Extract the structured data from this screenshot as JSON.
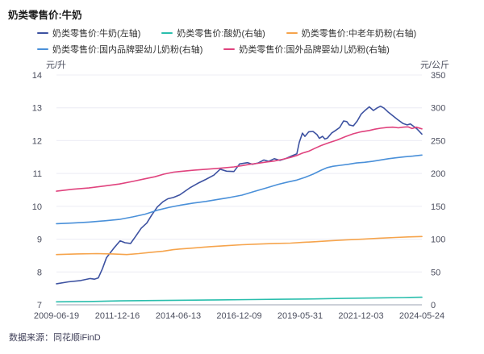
{
  "page": {
    "title": "奶类零售价:牛奶",
    "source": "数据来源：同花顺iFinD"
  },
  "chart_data": {
    "type": "line",
    "title": "奶类零售价:牛奶",
    "legend_position": "top",
    "grid": "horizontal-only",
    "grid_color": "#ececf4",
    "axis_line_color": "#9ba1b0",
    "x_axis": {
      "type": "time",
      "tick_labels": [
        "2009-06-19",
        "2011-12-16",
        "2014-06-13",
        "2016-12-09",
        "2019-05-31",
        "2021-12-03",
        "2024-05-24"
      ],
      "range_years": [
        2009.47,
        2024.4
      ]
    },
    "y_axis_left": {
      "unit": "元/升",
      "min": 7,
      "max": 14,
      "ticks": [
        7,
        8,
        9,
        10,
        11,
        12,
        13,
        14
      ]
    },
    "y_axis_right": {
      "unit": "元/公斤",
      "min": 0,
      "max": 350,
      "ticks": [
        0,
        50,
        100,
        150,
        200,
        250,
        300,
        350
      ]
    },
    "series": [
      {
        "name": "奶类零售价:牛奶(左轴)",
        "axis": "left",
        "color": "#3d52a1",
        "points": [
          [
            2009.47,
            7.64
          ],
          [
            2009.96,
            7.7
          ],
          [
            2010.46,
            7.74
          ],
          [
            2010.85,
            7.8
          ],
          [
            2011.02,
            7.78
          ],
          [
            2011.18,
            7.82
          ],
          [
            2011.35,
            8.1
          ],
          [
            2011.51,
            8.43
          ],
          [
            2011.84,
            8.75
          ],
          [
            2012.07,
            8.95
          ],
          [
            2012.27,
            8.89
          ],
          [
            2012.5,
            8.87
          ],
          [
            2012.7,
            9.08
          ],
          [
            2012.93,
            9.33
          ],
          [
            2013.16,
            9.49
          ],
          [
            2013.36,
            9.73
          ],
          [
            2013.59,
            9.98
          ],
          [
            2013.82,
            10.14
          ],
          [
            2014.02,
            10.23
          ],
          [
            2014.25,
            10.27
          ],
          [
            2014.51,
            10.35
          ],
          [
            2014.91,
            10.56
          ],
          [
            2015.24,
            10.7
          ],
          [
            2015.57,
            10.82
          ],
          [
            2015.9,
            10.95
          ],
          [
            2016.16,
            11.13
          ],
          [
            2016.42,
            11.07
          ],
          [
            2016.72,
            11.06
          ],
          [
            2016.95,
            11.29
          ],
          [
            2017.28,
            11.33
          ],
          [
            2017.48,
            11.28
          ],
          [
            2017.71,
            11.32
          ],
          [
            2017.94,
            11.41
          ],
          [
            2018.14,
            11.37
          ],
          [
            2018.37,
            11.45
          ],
          [
            2018.6,
            11.4
          ],
          [
            2018.86,
            11.46
          ],
          [
            2019.09,
            11.54
          ],
          [
            2019.29,
            11.6
          ],
          [
            2019.39,
            11.95
          ],
          [
            2019.52,
            12.23
          ],
          [
            2019.62,
            12.13
          ],
          [
            2019.78,
            12.27
          ],
          [
            2019.95,
            12.28
          ],
          [
            2020.11,
            12.19
          ],
          [
            2020.21,
            12.07
          ],
          [
            2020.34,
            12.13
          ],
          [
            2020.44,
            12.05
          ],
          [
            2020.54,
            12.08
          ],
          [
            2020.71,
            12.23
          ],
          [
            2020.87,
            12.31
          ],
          [
            2021.04,
            12.4
          ],
          [
            2021.2,
            12.6
          ],
          [
            2021.33,
            12.58
          ],
          [
            2021.43,
            12.48
          ],
          [
            2021.6,
            12.45
          ],
          [
            2021.76,
            12.6
          ],
          [
            2021.92,
            12.81
          ],
          [
            2022.09,
            12.93
          ],
          [
            2022.25,
            13.03
          ],
          [
            2022.42,
            12.92
          ],
          [
            2022.58,
            13.0
          ],
          [
            2022.71,
            13.05
          ],
          [
            2022.85,
            12.99
          ],
          [
            2023.01,
            12.88
          ],
          [
            2023.21,
            12.76
          ],
          [
            2023.41,
            12.64
          ],
          [
            2023.64,
            12.52
          ],
          [
            2023.8,
            12.48
          ],
          [
            2023.93,
            12.51
          ],
          [
            2024.07,
            12.43
          ],
          [
            2024.2,
            12.36
          ],
          [
            2024.4,
            12.2
          ]
        ]
      },
      {
        "name": "奶类零售价:酸奶(右轴)",
        "axis": "right",
        "color": "#2abead",
        "points": [
          [
            2009.47,
            4.5
          ],
          [
            2010.79,
            5
          ],
          [
            2012.11,
            6
          ],
          [
            2013.42,
            6.5
          ],
          [
            2014.74,
            7
          ],
          [
            2016.06,
            7.5
          ],
          [
            2017.38,
            8
          ],
          [
            2018.7,
            8.5
          ],
          [
            2020.01,
            9
          ],
          [
            2021.33,
            10
          ],
          [
            2022.65,
            10.5
          ],
          [
            2023.64,
            11
          ],
          [
            2024.4,
            11.5
          ]
        ]
      },
      {
        "name": "奶类零售价:中老年奶粉(右轴)",
        "axis": "right",
        "color": "#f6a44c",
        "points": [
          [
            2009.47,
            76.5
          ],
          [
            2010.29,
            77.5
          ],
          [
            2011.12,
            78
          ],
          [
            2011.78,
            77.5
          ],
          [
            2012.34,
            76.5
          ],
          [
            2012.83,
            78
          ],
          [
            2013.32,
            80
          ],
          [
            2013.82,
            81.5
          ],
          [
            2014.25,
            84
          ],
          [
            2014.51,
            85
          ],
          [
            2015.07,
            86.5
          ],
          [
            2015.73,
            88.5
          ],
          [
            2016.39,
            90
          ],
          [
            2017.05,
            91.5
          ],
          [
            2017.71,
            92.5
          ],
          [
            2018.37,
            93.5
          ],
          [
            2019.03,
            94
          ],
          [
            2019.52,
            95
          ],
          [
            2020.01,
            96
          ],
          [
            2020.67,
            97.5
          ],
          [
            2021.33,
            99
          ],
          [
            2021.99,
            100
          ],
          [
            2022.65,
            101.5
          ],
          [
            2023.31,
            102.5
          ],
          [
            2023.96,
            103.5
          ],
          [
            2024.4,
            104
          ]
        ]
      },
      {
        "name": "奶类零售价:国内品牌婴幼儿奶粉(右轴)",
        "axis": "right",
        "color": "#4a90d9",
        "points": [
          [
            2009.47,
            123.5
          ],
          [
            2010.13,
            124.5
          ],
          [
            2010.79,
            126
          ],
          [
            2011.45,
            128
          ],
          [
            2012.04,
            130
          ],
          [
            2012.6,
            134
          ],
          [
            2013.09,
            138
          ],
          [
            2013.59,
            144
          ],
          [
            2014.08,
            148.5
          ],
          [
            2014.51,
            151.5
          ],
          [
            2015.07,
            155
          ],
          [
            2015.57,
            157.5
          ],
          [
            2016.06,
            160.5
          ],
          [
            2016.55,
            163.5
          ],
          [
            2017.05,
            167
          ],
          [
            2017.54,
            172.5
          ],
          [
            2018.04,
            178
          ],
          [
            2018.53,
            183.5
          ],
          [
            2018.93,
            187
          ],
          [
            2019.29,
            190
          ],
          [
            2019.62,
            194
          ],
          [
            2019.95,
            199
          ],
          [
            2020.28,
            205
          ],
          [
            2020.54,
            209
          ],
          [
            2020.77,
            211
          ],
          [
            2021.07,
            212.5
          ],
          [
            2021.4,
            214
          ],
          [
            2021.73,
            216
          ],
          [
            2022.05,
            217
          ],
          [
            2022.38,
            218.5
          ],
          [
            2022.71,
            220.5
          ],
          [
            2023.04,
            222.5
          ],
          [
            2023.37,
            224
          ],
          [
            2023.7,
            225.5
          ],
          [
            2024.03,
            226.5
          ],
          [
            2024.4,
            228
          ]
        ]
      },
      {
        "name": "奶类零售价:国外品牌婴幼儿奶粉(右轴)",
        "axis": "right",
        "color": "#e0437e",
        "points": [
          [
            2009.47,
            173
          ],
          [
            2010.13,
            176
          ],
          [
            2010.79,
            178
          ],
          [
            2011.45,
            181
          ],
          [
            2012.04,
            184
          ],
          [
            2012.6,
            188
          ],
          [
            2013.09,
            192
          ],
          [
            2013.49,
            195
          ],
          [
            2013.85,
            199
          ],
          [
            2014.25,
            202
          ],
          [
            2014.51,
            203
          ],
          [
            2015.07,
            205
          ],
          [
            2015.57,
            206.5
          ],
          [
            2016.16,
            208
          ],
          [
            2016.72,
            210
          ],
          [
            2017.05,
            212
          ],
          [
            2017.38,
            214
          ],
          [
            2017.71,
            215.5
          ],
          [
            2018.04,
            217.5
          ],
          [
            2018.37,
            219
          ],
          [
            2018.7,
            221.5
          ],
          [
            2019.03,
            224.5
          ],
          [
            2019.29,
            227.5
          ],
          [
            2019.52,
            231
          ],
          [
            2019.78,
            234
          ],
          [
            2020.01,
            238
          ],
          [
            2020.28,
            242.5
          ],
          [
            2020.61,
            247
          ],
          [
            2020.94,
            251
          ],
          [
            2021.27,
            256
          ],
          [
            2021.6,
            260.5
          ],
          [
            2021.92,
            263.5
          ],
          [
            2022.25,
            265.5
          ],
          [
            2022.48,
            267.5
          ],
          [
            2022.71,
            269
          ],
          [
            2022.98,
            270
          ],
          [
            2023.21,
            270.5
          ],
          [
            2023.44,
            269.5
          ],
          [
            2023.64,
            270.5
          ],
          [
            2023.83,
            271
          ],
          [
            2024.0,
            268.5
          ],
          [
            2024.17,
            270.5
          ],
          [
            2024.4,
            268
          ]
        ]
      }
    ]
  }
}
